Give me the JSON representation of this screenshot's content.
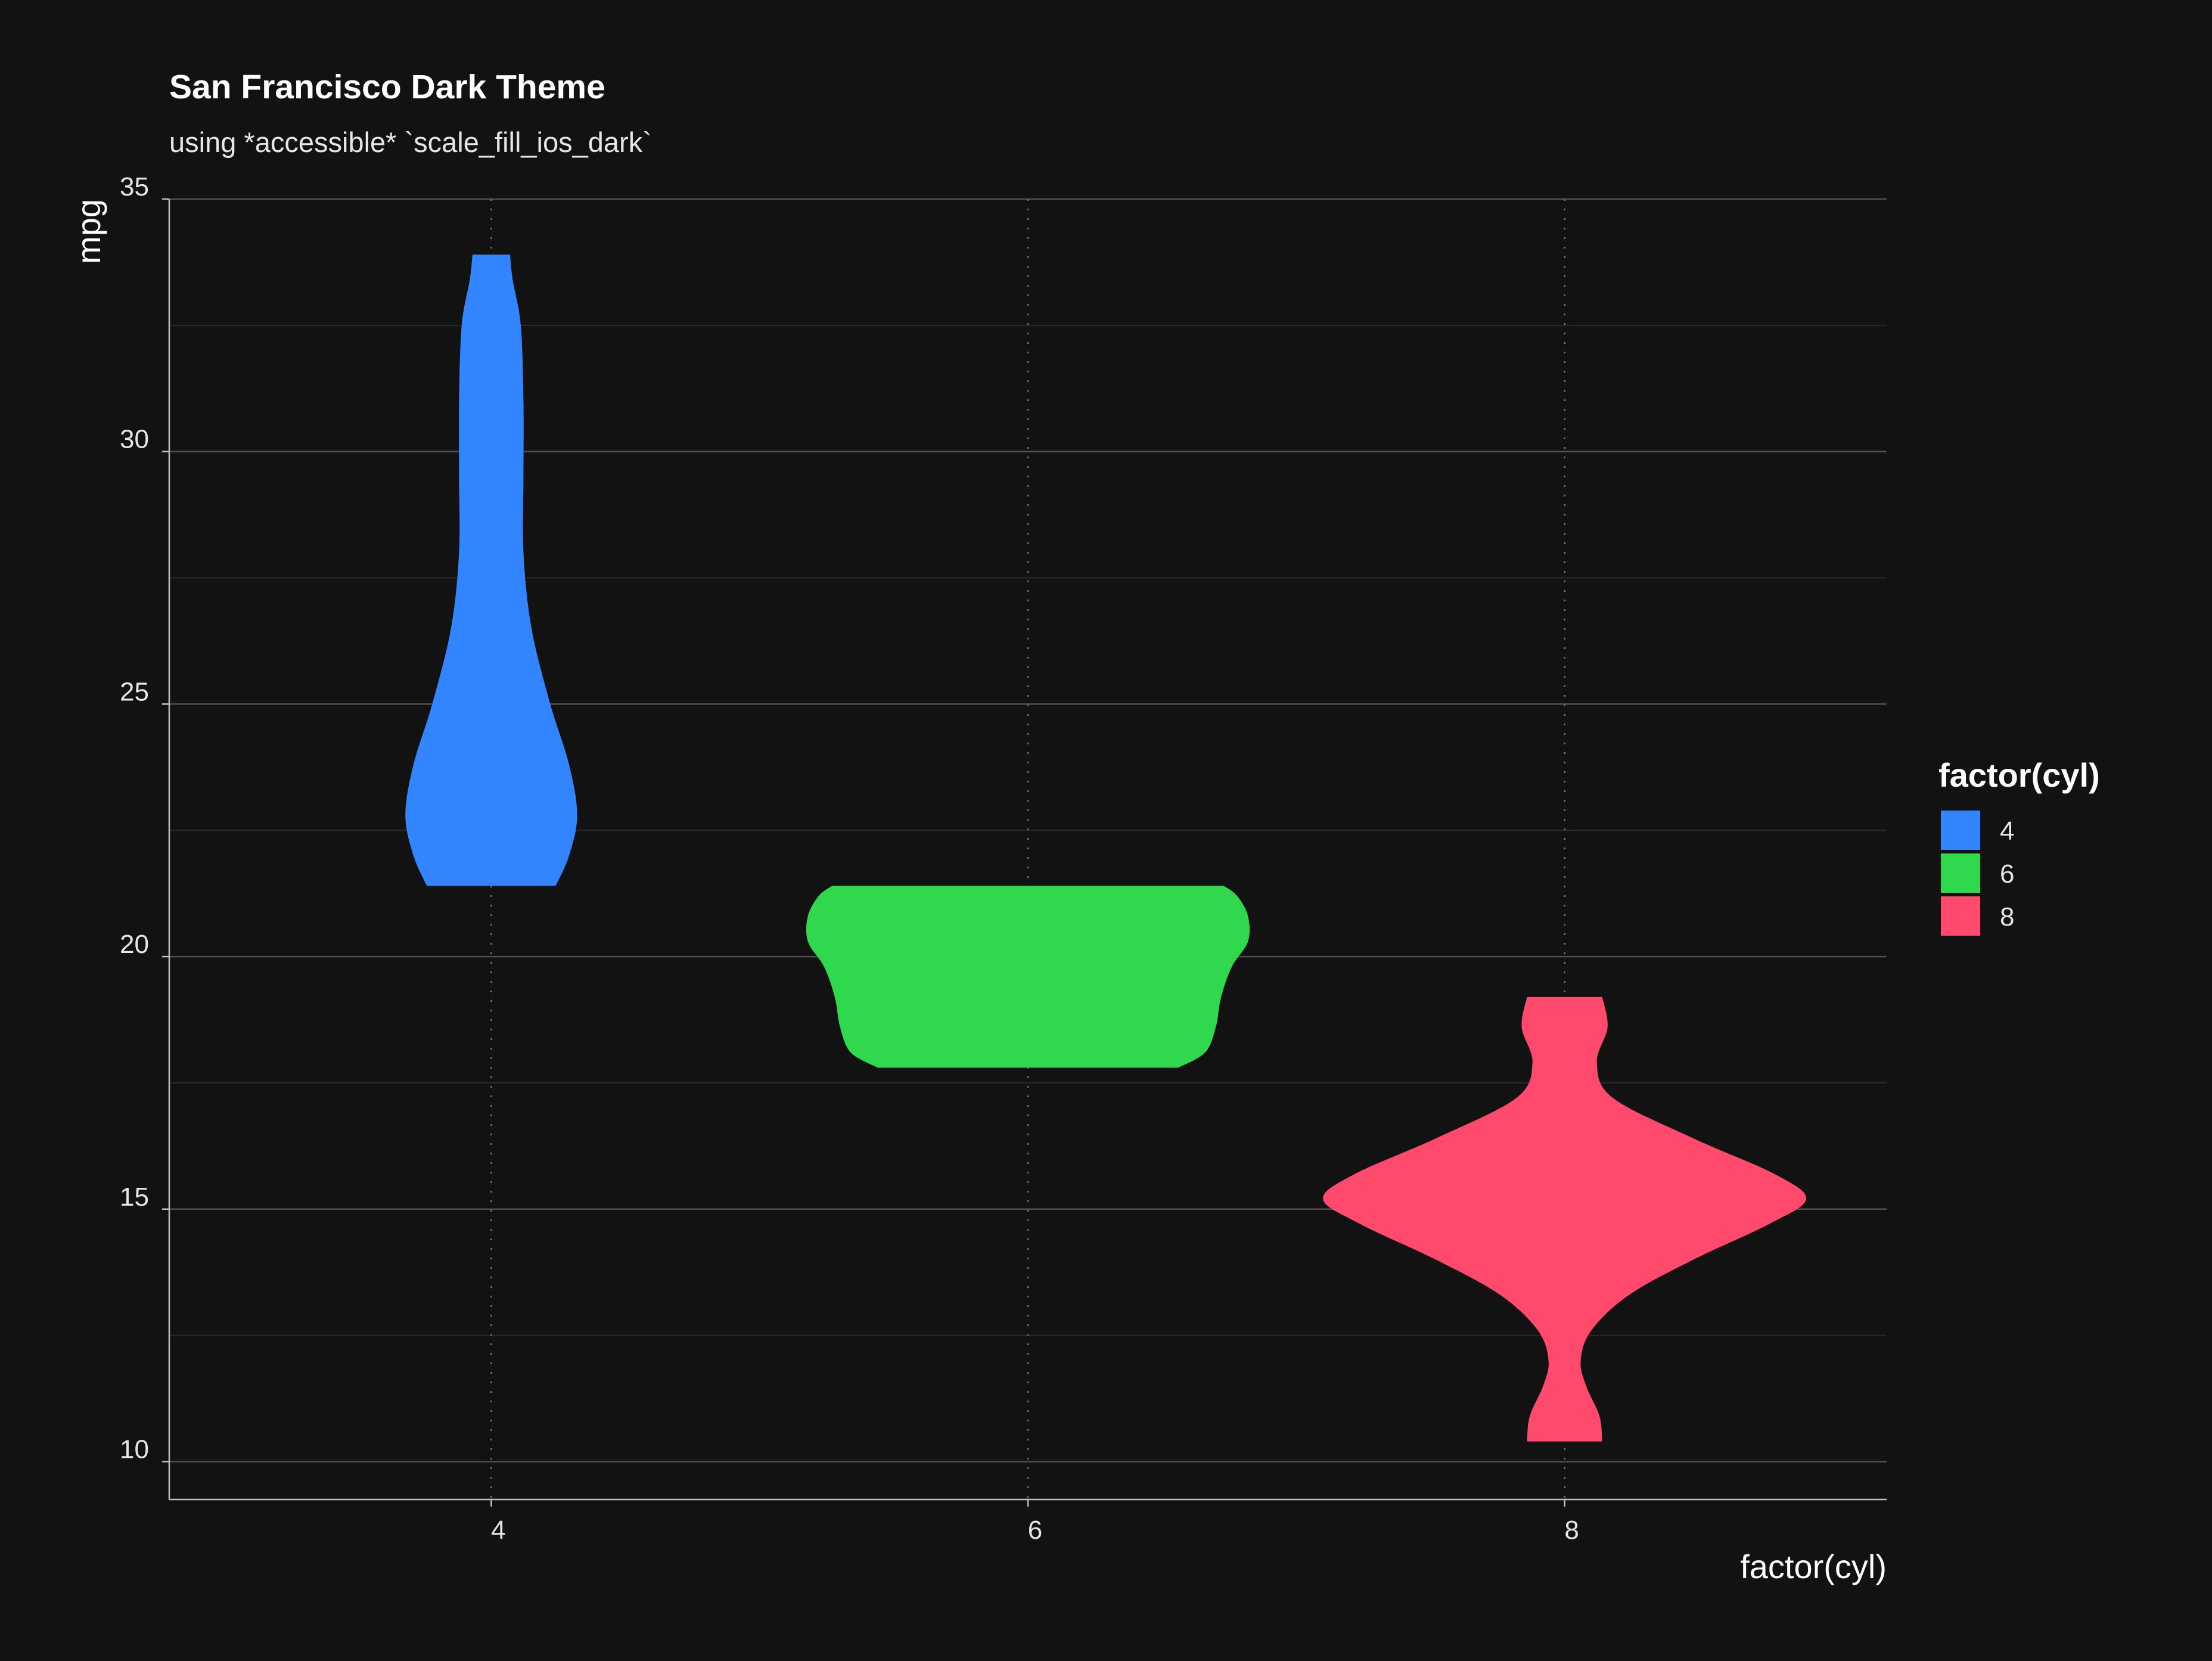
{
  "chart_data": {
    "type": "violin",
    "title": "San Francisco Dark Theme",
    "subtitle": "using *accessible* `scale_fill_ios_dark`",
    "xlabel": "factor(cyl)",
    "ylabel": "mpg",
    "categories": [
      "4",
      "6",
      "8"
    ],
    "ylim": [
      9.25,
      35
    ],
    "y_ticks": [
      10,
      15,
      20,
      25,
      30,
      35
    ],
    "grid": {
      "major_y": true,
      "minor_y": true,
      "major_x": "dotted"
    },
    "legend": {
      "title": "factor(cyl)",
      "placement": "right"
    },
    "series": [
      {
        "name": "4",
        "color": "#3385FF",
        "density": [
          {
            "y": 21.4,
            "w": 0.12
          },
          {
            "y": 22.0,
            "w": 0.145
          },
          {
            "y": 22.8,
            "w": 0.16
          },
          {
            "y": 23.8,
            "w": 0.145
          },
          {
            "y": 25.0,
            "w": 0.11
          },
          {
            "y": 26.5,
            "w": 0.075
          },
          {
            "y": 28.0,
            "w": 0.06
          },
          {
            "y": 29.5,
            "w": 0.06
          },
          {
            "y": 31.0,
            "w": 0.06
          },
          {
            "y": 32.5,
            "w": 0.055
          },
          {
            "y": 33.4,
            "w": 0.04
          },
          {
            "y": 33.9,
            "w": 0.035
          }
        ]
      },
      {
        "name": "6",
        "color": "#30D84D",
        "density": [
          {
            "y": 17.8,
            "w": 0.28
          },
          {
            "y": 18.1,
            "w": 0.33
          },
          {
            "y": 18.6,
            "w": 0.35
          },
          {
            "y": 19.2,
            "w": 0.36
          },
          {
            "y": 19.8,
            "w": 0.38
          },
          {
            "y": 20.3,
            "w": 0.41
          },
          {
            "y": 20.8,
            "w": 0.41
          },
          {
            "y": 21.2,
            "w": 0.39
          },
          {
            "y": 21.4,
            "w": 0.365
          }
        ]
      },
      {
        "name": "8",
        "color": "#FF4A6D",
        "density": [
          {
            "y": 10.4,
            "w": 0.07
          },
          {
            "y": 10.9,
            "w": 0.065
          },
          {
            "y": 11.5,
            "w": 0.04
          },
          {
            "y": 12.0,
            "w": 0.03
          },
          {
            "y": 12.6,
            "w": 0.05
          },
          {
            "y": 13.3,
            "w": 0.12
          },
          {
            "y": 14.0,
            "w": 0.24
          },
          {
            "y": 14.7,
            "w": 0.38
          },
          {
            "y": 15.2,
            "w": 0.45
          },
          {
            "y": 15.7,
            "w": 0.39
          },
          {
            "y": 16.4,
            "w": 0.24
          },
          {
            "y": 17.2,
            "w": 0.09
          },
          {
            "y": 17.9,
            "w": 0.06
          },
          {
            "y": 18.6,
            "w": 0.08
          },
          {
            "y": 19.2,
            "w": 0.07
          }
        ]
      }
    ]
  }
}
